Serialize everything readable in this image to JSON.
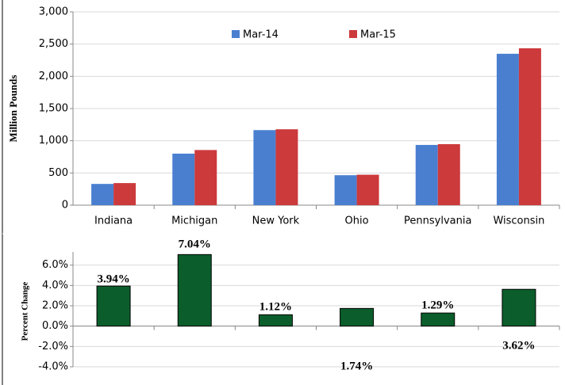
{
  "chart_data": [
    {
      "type": "bar",
      "ylabel": "Million Pounds",
      "categories": [
        "Indiana",
        "Michigan",
        "New York",
        "Ohio",
        "Pennsylvania",
        "Wisconsin"
      ],
      "series": [
        {
          "name": "Mar-14",
          "color": "#4a7fd0",
          "values": [
            330,
            800,
            1165,
            465,
            935,
            2350
          ]
        },
        {
          "name": "Mar-15",
          "color": "#cc3a3c",
          "values": [
            343,
            856,
            1178,
            473,
            947,
            2435
          ]
        }
      ],
      "ylim": [
        0,
        3000
      ],
      "yticks": [
        0,
        500,
        {
          "value": 1000,
          "label": "1,000"
        },
        {
          "value": 1500,
          "label": "1,500"
        },
        {
          "value": 2000,
          "label": "2,000"
        },
        {
          "value": 2500,
          "label": "2,500"
        },
        {
          "value": 3000,
          "label": "3,000"
        }
      ],
      "grid": true
    },
    {
      "type": "bar",
      "ylabel": "Percent Change",
      "categories": [
        null,
        null,
        null,
        null,
        null,
        null
      ],
      "values": [
        3.94,
        7.04,
        1.12,
        1.74,
        1.29,
        3.62
      ],
      "value_labels": [
        "3.94%",
        "7.04%",
        "1.12%",
        "1.74%",
        "1.29%",
        "3.62%"
      ],
      "color": "#0b5e2b",
      "ylim": [
        -4,
        7.3
      ],
      "yticks": [
        {
          "value": -4,
          "label": "-4.0%"
        },
        {
          "value": -2,
          "label": "-2.0%"
        },
        {
          "value": 0,
          "label": "0.0%"
        },
        {
          "value": 2,
          "label": "2.0%"
        },
        {
          "value": 4,
          "label": "4.0%"
        },
        {
          "value": 6,
          "label": "6.0%"
        }
      ],
      "grid": true
    }
  ]
}
